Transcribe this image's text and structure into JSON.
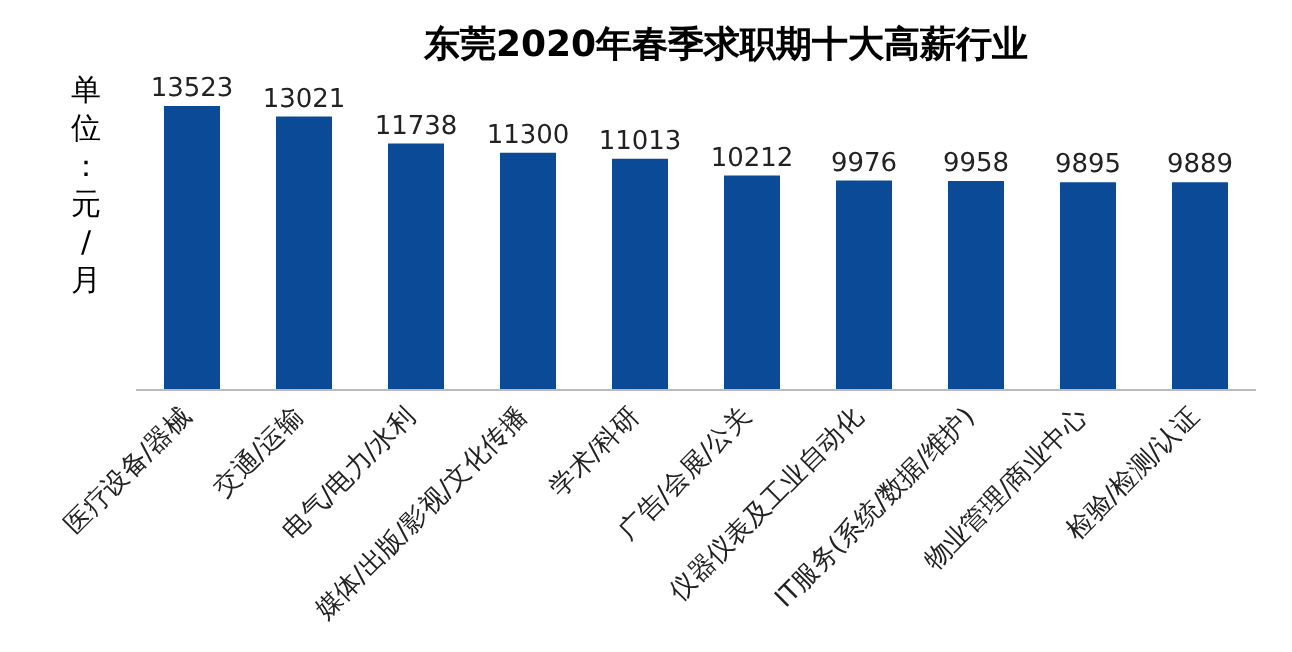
{
  "chart_data": {
    "type": "bar",
    "title": "东莞2020年春季求职期十大高薪行业",
    "ylabel": "单位：元/月",
    "categories": [
      "医疗设备/器械",
      "交通/运输",
      "电气/电力/水利",
      "媒体/出版/影视/文化传播",
      "学术/科研",
      "广告/会展/公关",
      "仪器仪表及工业自动化",
      "IT服务(系统/数据/维护)",
      "物业管理/商业中心",
      "检验/检测/认证"
    ],
    "values": [
      13523,
      13021,
      11738,
      11300,
      11013,
      10212,
      9976,
      9958,
      9895,
      9889
    ],
    "color": "#0b4a96",
    "data_labels": true
  }
}
